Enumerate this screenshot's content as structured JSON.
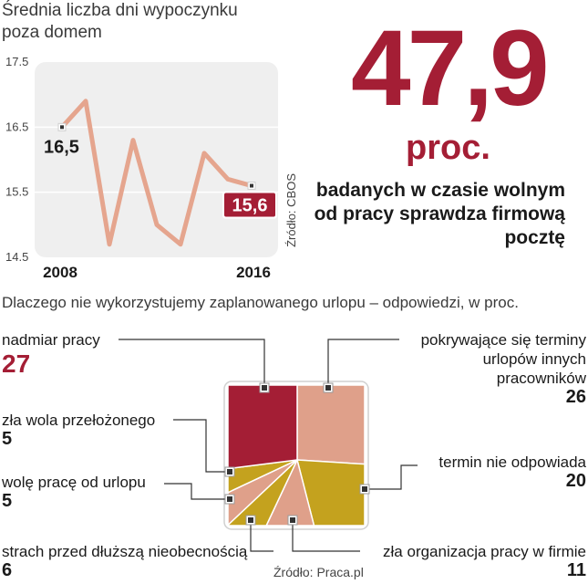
{
  "line": {
    "title": "Średnia liczba dni wypoczynku poza domem",
    "source": "Źródło: CBOS",
    "start_label": "16,5",
    "end_label": "15,6"
  },
  "headline": {
    "value": "47,9",
    "unit": "proc.",
    "description": "badanych w czasie wolnym od pracy sprawdza firmową pocztę"
  },
  "pie": {
    "title": "Dlaczego nie wykorzystujemy zaplanowanego urlopu – odpowiedzi, w proc.",
    "source": "Źródło: Praca.pl",
    "labels": {
      "overwork": "nadmiar pracy",
      "boss": "zła wola przełożonego",
      "prefer_work": "wolę pracę od urlopu",
      "fear": "strach przed dłuższą nieobecnością",
      "overlap": "pokrywające się terminy urlopów innych pracowników",
      "bad_time": "termin nie odpowiada",
      "organisation": "zła organizacja pracy w firmie"
    },
    "values_text": {
      "overwork": "27",
      "boss": "5",
      "prefer_work": "5",
      "fear": "6",
      "overlap": "26",
      "bad_time": "20",
      "organisation": "11"
    }
  },
  "chart_data": [
    {
      "type": "line",
      "title": "Średnia liczba dni wypoczynku poza domem",
      "x": [
        2008,
        2009,
        2010,
        2011,
        2012,
        2013,
        2014,
        2015,
        2016
      ],
      "x_tick_labels": [
        "2008",
        "2016"
      ],
      "values": [
        16.5,
        16.9,
        14.7,
        16.3,
        15.0,
        14.7,
        16.1,
        15.7,
        15.6
      ],
      "ylim": [
        14.5,
        17.5
      ],
      "yticks": [
        14.5,
        15.5,
        16.5,
        17.5
      ],
      "ytick_labels": [
        "14.5",
        "15.5",
        "16.5",
        "17.5"
      ],
      "data_labels": {
        "first": "16,5",
        "last": "15,6"
      },
      "colors": {
        "line": "#e5a58e",
        "panel": "#efefef",
        "highlight": "#a41e35"
      }
    },
    {
      "type": "pie",
      "title": "Dlaczego nie wykorzystujemy zaplanowanego urlopu – odpowiedzi, w proc.",
      "slices": [
        {
          "key": "overlap",
          "value": 26,
          "color": "#dfa08a"
        },
        {
          "key": "bad_time",
          "value": 20,
          "color": "#c4a21e"
        },
        {
          "key": "organisation",
          "value": 11,
          "color": "#dfa08a"
        },
        {
          "key": "fear",
          "value": 6,
          "color": "#c4a21e"
        },
        {
          "key": "prefer_work",
          "value": 5,
          "color": "#dfa08a"
        },
        {
          "key": "boss",
          "value": 5,
          "color": "#c4a21e"
        },
        {
          "key": "overwork",
          "value": 27,
          "color": "#a41e35"
        }
      ],
      "shape": "square"
    }
  ]
}
